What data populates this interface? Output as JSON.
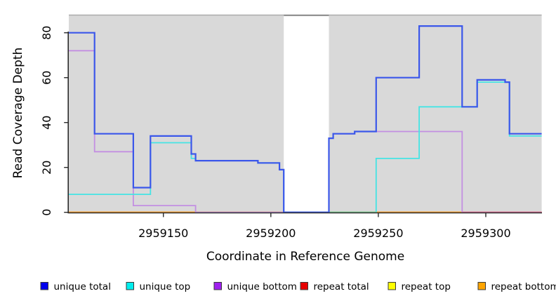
{
  "chart_data": {
    "type": "line",
    "subtype": "step-coverage-plot",
    "title": "",
    "xlabel": "Coordinate in Reference Genome",
    "ylabel": "Read Coverage Depth",
    "x_ticks": [
      2959150,
      2959200,
      2959250,
      2959300
    ],
    "y_ticks": [
      0,
      20,
      40,
      60,
      80
    ],
    "xlim": [
      2959106,
      2959326
    ],
    "ylim": [
      0,
      88
    ],
    "grid": "off",
    "legend_position": "bottom",
    "plot_background": "#d9d9d9",
    "no_data_region": {
      "from": 2959206,
      "to": 2959227,
      "fill": "#ffffff",
      "border": "#8c8c8c"
    },
    "series": [
      {
        "name": "unique total",
        "legend_color": "#0000ee",
        "line_color": "#3b57ea",
        "width": 2.2,
        "step_points": [
          [
            2959106,
            80
          ],
          [
            2959118,
            35
          ],
          [
            2959136,
            11
          ],
          [
            2959144,
            34
          ],
          [
            2959163,
            26
          ],
          [
            2959165,
            23
          ],
          [
            2959194,
            22
          ],
          [
            2959204,
            19
          ],
          [
            2959206,
            0
          ],
          [
            2959227,
            33
          ],
          [
            2959229,
            35
          ],
          [
            2959239,
            36
          ],
          [
            2959249,
            60
          ],
          [
            2959269,
            83
          ],
          [
            2959289,
            47
          ],
          [
            2959296,
            59
          ],
          [
            2959309,
            58
          ],
          [
            2959311,
            35
          ],
          [
            2959326,
            35
          ]
        ]
      },
      {
        "name": "unique top",
        "legend_color": "#00eeee",
        "line_color": "#45e4e4",
        "width": 1.8,
        "step_points": [
          [
            2959106,
            8
          ],
          [
            2959144,
            31
          ],
          [
            2959163,
            24
          ],
          [
            2959165,
            23
          ],
          [
            2959194,
            22
          ],
          [
            2959204,
            19
          ],
          [
            2959206,
            0
          ],
          [
            2959249,
            24
          ],
          [
            2959269,
            47
          ],
          [
            2959296,
            58
          ],
          [
            2959311,
            34
          ],
          [
            2959326,
            34
          ]
        ]
      },
      {
        "name": "unique bottom",
        "legend_color": "#a020f0",
        "line_color": "#c38fe2",
        "width": 1.8,
        "step_points": [
          [
            2959106,
            72
          ],
          [
            2959118,
            27
          ],
          [
            2959136,
            3
          ],
          [
            2959165,
            0
          ],
          [
            2959227,
            33
          ],
          [
            2959229,
            35
          ],
          [
            2959239,
            36
          ],
          [
            2959289,
            0
          ],
          [
            2959326,
            0
          ]
        ]
      },
      {
        "name": "repeat total",
        "legend_color": "#e60000",
        "line_color": "#dd1c1c",
        "width": 1.8,
        "step_points": [
          [
            2959106,
            0
          ],
          [
            2959326,
            0
          ]
        ]
      },
      {
        "name": "repeat top",
        "legend_color": "#ffff00",
        "line_color": "#f2e426",
        "width": 1.8,
        "step_points": [
          [
            2959106,
            0
          ],
          [
            2959326,
            0
          ]
        ]
      },
      {
        "name": "repeat bottom",
        "legend_color": "#ffa500",
        "line_color": "#ff9d24",
        "width": 1.8,
        "step_points": [
          [
            2959106,
            0
          ],
          [
            2959326,
            0
          ]
        ]
      }
    ],
    "baseline_overlays": [
      {
        "from": 2959227,
        "to": 2959249,
        "color": "#7ecf96"
      },
      {
        "from": 2959289,
        "to": 2959326,
        "color": "#df6d9d"
      }
    ]
  }
}
